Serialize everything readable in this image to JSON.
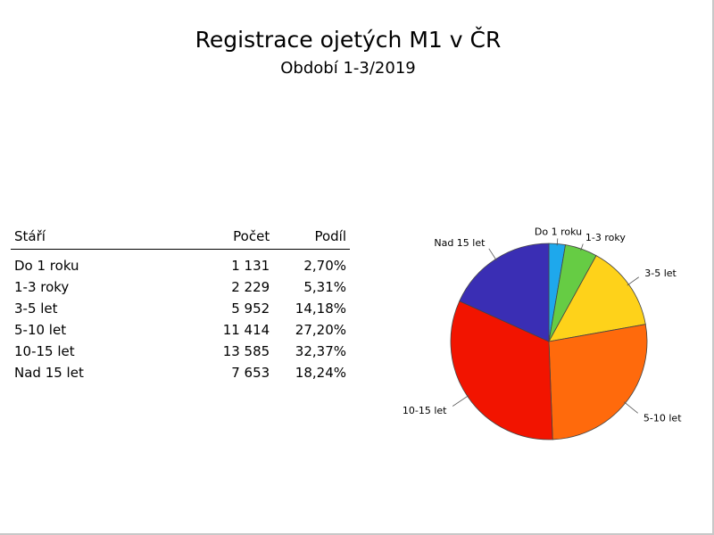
{
  "title": "Registrace ojetých M1 v ČR",
  "subtitle": "Období 1-3/2019",
  "table": {
    "headers": {
      "age": "Stáří",
      "count": "Počet",
      "share": "Podíl"
    },
    "rows": [
      {
        "age": "Do 1 roku",
        "count": "1 131",
        "share": "2,70%"
      },
      {
        "age": "1-3 roky",
        "count": "2 229",
        "share": "5,31%"
      },
      {
        "age": "3-5 let",
        "count": "5 952",
        "share": "14,18%"
      },
      {
        "age": "5-10 let",
        "count": "11 414",
        "share": "27,20%"
      },
      {
        "age": "10-15 let",
        "count": "13 585",
        "share": "32,37%"
      },
      {
        "age": "Nad 15 let",
        "count": "7 653",
        "share": "18,24%"
      }
    ]
  },
  "chart_data": {
    "type": "pie",
    "title": "Registrace ojetých M1 v ČR",
    "subtitle": "Období 1-3/2019",
    "categories": [
      "Do 1 roku",
      "1-3 roky",
      "3-5 let",
      "5-10 let",
      "10-15 let",
      "Nad 15 let"
    ],
    "values": [
      1131,
      2229,
      5952,
      11414,
      13585,
      7653
    ],
    "colors": [
      "#1ea8ec",
      "#66cc44",
      "#fed21a",
      "#ff6a0c",
      "#f21400",
      "#3a2eb4"
    ],
    "start_angle": "12 o'clock",
    "direction": "clockwise",
    "legend": "none"
  }
}
